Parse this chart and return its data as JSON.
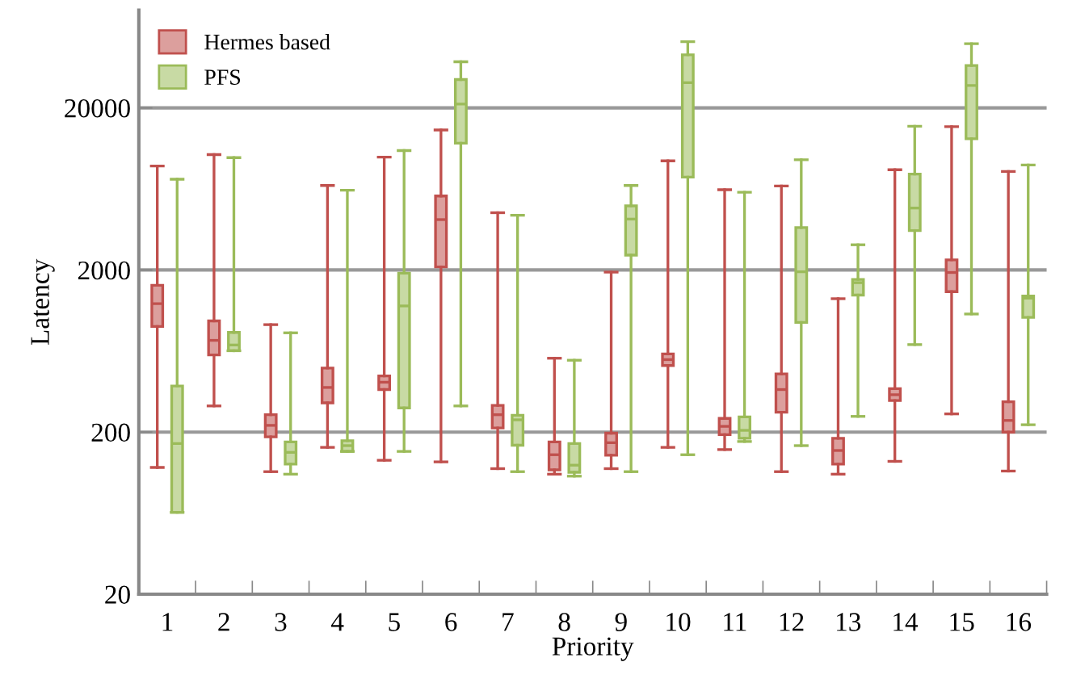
{
  "chart_data": {
    "type": "box",
    "xlabel": "Priority",
    "ylabel": "Latency",
    "categories": [
      "1",
      "2",
      "3",
      "4",
      "5",
      "6",
      "7",
      "8",
      "9",
      "10",
      "11",
      "12",
      "13",
      "14",
      "15",
      "16"
    ],
    "log": "y",
    "ylim": [
      20,
      80000
    ],
    "yticks": [
      20,
      200,
      2000,
      20000
    ],
    "grid": "y",
    "legend": "top left",
    "series": [
      {
        "name": "Hermes based",
        "color": "#c0504d",
        "boxes": [
          {
            "low": 121,
            "q1": 896,
            "median": 1240,
            "q3": 1610,
            "high": 8750
          },
          {
            "low": 290,
            "q1": 598,
            "median": 736,
            "q3": 970,
            "high": 10300
          },
          {
            "low": 114,
            "q1": 187,
            "median": 220,
            "q3": 256,
            "high": 920
          },
          {
            "low": 161,
            "q1": 303,
            "median": 377,
            "q3": 497,
            "high": 6640
          },
          {
            "low": 134,
            "q1": 366,
            "median": 406,
            "q3": 444,
            "high": 9930
          },
          {
            "low": 131,
            "q1": 2090,
            "median": 4090,
            "q3": 5720,
            "high": 14600
          },
          {
            "low": 119,
            "q1": 212,
            "median": 256,
            "q3": 292,
            "high": 4510
          },
          {
            "low": 110,
            "q1": 117,
            "median": 145,
            "q3": 174,
            "high": 571
          },
          {
            "low": 119,
            "q1": 144,
            "median": 172,
            "q3": 197,
            "high": 1940
          },
          {
            "low": 161,
            "q1": 515,
            "median": 560,
            "q3": 607,
            "high": 9420
          },
          {
            "low": 156,
            "q1": 193,
            "median": 217,
            "q3": 243,
            "high": 6250
          },
          {
            "low": 114,
            "q1": 265,
            "median": 366,
            "q3": 457,
            "high": 6590
          },
          {
            "low": 110,
            "q1": 127,
            "median": 154,
            "q3": 183,
            "high": 1330
          },
          {
            "low": 132,
            "q1": 313,
            "median": 340,
            "q3": 371,
            "high": 8300
          },
          {
            "low": 259,
            "q1": 1470,
            "median": 1930,
            "q3": 2310,
            "high": 15300
          },
          {
            "low": 115,
            "q1": 200,
            "median": 236,
            "q3": 308,
            "high": 8110
          }
        ]
      },
      {
        "name": "PFS",
        "color": "#9bbb59",
        "boxes": [
          {
            "low": 64,
            "q1": 64,
            "median": 170,
            "q3": 385,
            "high": 7260
          },
          {
            "low": 635,
            "q1": 635,
            "median": 689,
            "q3": 824,
            "high": 9860
          },
          {
            "low": 110,
            "q1": 127,
            "median": 150,
            "q3": 174,
            "high": 819
          },
          {
            "low": 152,
            "q1": 152,
            "median": 165,
            "q3": 177,
            "high": 6210
          },
          {
            "low": 152,
            "q1": 282,
            "median": 1200,
            "q3": 1910,
            "high": 10900
          },
          {
            "low": 290,
            "q1": 12100,
            "median": 21100,
            "q3": 29900,
            "high": 38500
          },
          {
            "low": 114,
            "q1": 166,
            "median": 238,
            "q3": 254,
            "high": 4350
          },
          {
            "low": 107,
            "q1": 113,
            "median": 125,
            "q3": 170,
            "high": 555
          },
          {
            "low": 114,
            "q1": 2470,
            "median": 4120,
            "q3": 4970,
            "high": 6640
          },
          {
            "low": 145,
            "q1": 7480,
            "median": 28600,
            "q3": 42500,
            "high": 51200
          },
          {
            "low": 175,
            "q1": 183,
            "median": 205,
            "q3": 248,
            "high": 6030
          },
          {
            "low": 165,
            "q1": 949,
            "median": 1950,
            "q3": 3650,
            "high": 9570
          },
          {
            "low": 250,
            "q1": 1400,
            "median": 1670,
            "q3": 1750,
            "high": 2860
          },
          {
            "low": 693,
            "q1": 3500,
            "median": 4820,
            "q3": 7810,
            "high": 15400
          },
          {
            "low": 1070,
            "q1": 12900,
            "median": 27500,
            "q3": 36500,
            "high": 49700
          },
          {
            "low": 222,
            "q1": 1020,
            "median": 1340,
            "q3": 1380,
            "high": 8880
          }
        ]
      }
    ]
  }
}
